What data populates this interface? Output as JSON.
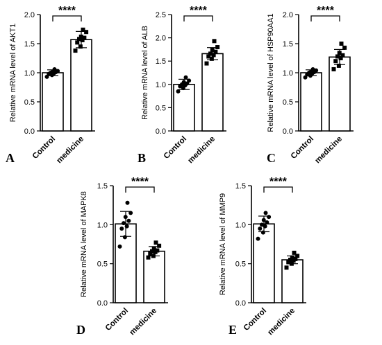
{
  "chart_data": [
    {
      "panel": "A",
      "type": "bar",
      "categories": [
        "Control",
        "medicine"
      ],
      "ylabel": "Relative mRNA level of AKT1",
      "ylim": [
        0,
        2.0
      ],
      "yticks": [
        "0.0",
        "0.5",
        "1.0",
        "1.5",
        "2.0"
      ],
      "means": [
        1.0,
        1.57
      ],
      "sd": [
        0.05,
        0.14
      ],
      "points": [
        [
          0.93,
          0.96,
          0.98,
          0.99,
          1.0,
          1.01,
          1.02,
          1.03,
          1.06
        ],
        [
          1.38,
          1.45,
          1.52,
          1.56,
          1.58,
          1.6,
          1.62,
          1.7,
          1.74
        ]
      ],
      "significance": "****"
    },
    {
      "panel": "B",
      "type": "bar",
      "categories": [
        "Control",
        "medicine"
      ],
      "ylabel": "Relative mRNA level of ALB",
      "ylim": [
        0,
        2.5
      ],
      "yticks": [
        "0.0",
        "0.5",
        "1.0",
        "1.5",
        "2.0",
        "2.5"
      ],
      "means": [
        1.0,
        1.66
      ],
      "sd": [
        0.11,
        0.13
      ],
      "points": [
        [
          0.85,
          0.92,
          0.96,
          0.98,
          1.0,
          1.02,
          1.05,
          1.08,
          1.15
        ],
        [
          1.45,
          1.55,
          1.6,
          1.63,
          1.66,
          1.7,
          1.74,
          1.8,
          1.93
        ]
      ],
      "significance": "****"
    },
    {
      "panel": "C",
      "type": "bar",
      "categories": [
        "Control",
        "medicine"
      ],
      "ylabel": "Relative mRNA level of HSP90AA1",
      "ylim": [
        0,
        2.0
      ],
      "yticks": [
        "0.0",
        "0.5",
        "1.0",
        "1.5",
        "2.0"
      ],
      "means": [
        1.0,
        1.27
      ],
      "sd": [
        0.05,
        0.13
      ],
      "points": [
        [
          0.92,
          0.95,
          0.97,
          0.99,
          1.0,
          1.01,
          1.02,
          1.04,
          1.06
        ],
        [
          1.06,
          1.12,
          1.2,
          1.25,
          1.28,
          1.3,
          1.34,
          1.43,
          1.5
        ]
      ],
      "significance": "****"
    },
    {
      "panel": "D",
      "type": "bar",
      "categories": [
        "Control",
        "medicine"
      ],
      "ylabel": "Relative mRNA level of MAPK8",
      "ylim": [
        0,
        1.5
      ],
      "yticks": [
        "0.0",
        "0.5",
        "1.0",
        "1.5"
      ],
      "means": [
        1.01,
        0.66
      ],
      "sd": [
        0.16,
        0.06
      ],
      "points": [
        [
          0.72,
          0.84,
          0.95,
          0.98,
          1.02,
          1.05,
          1.1,
          1.15,
          1.28
        ],
        [
          0.58,
          0.6,
          0.63,
          0.65,
          0.66,
          0.67,
          0.69,
          0.73,
          0.77
        ]
      ],
      "significance": "****"
    },
    {
      "panel": "E",
      "type": "bar",
      "categories": [
        "Control",
        "medicine"
      ],
      "ylabel": "Relative mRNA level of MMP9",
      "ylim": [
        0,
        1.5
      ],
      "yticks": [
        "0.0",
        "0.5",
        "1.0",
        "1.5"
      ],
      "means": [
        1.01,
        0.55
      ],
      "sd": [
        0.1,
        0.05
      ],
      "points": [
        [
          0.82,
          0.9,
          0.95,
          0.98,
          1.0,
          1.03,
          1.06,
          1.1,
          1.15
        ],
        [
          0.45,
          0.5,
          0.52,
          0.54,
          0.55,
          0.56,
          0.58,
          0.6,
          0.64
        ]
      ],
      "significance": "****"
    }
  ]
}
